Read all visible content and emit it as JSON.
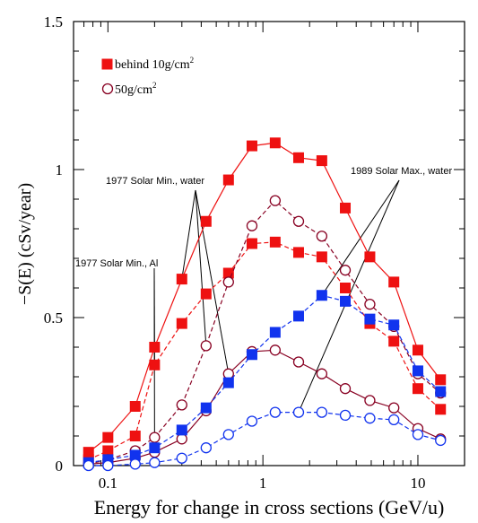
{
  "chart_data": {
    "type": "line",
    "xscale": "log",
    "xlim": [
      0.06,
      20
    ],
    "ylim": [
      0,
      1.5
    ],
    "xlabel": "Energy for change in cross sections (GeV/u)",
    "ylabel": "−S(E) (cSv/year)",
    "xticks": [
      {
        "value": 0.1,
        "label": "0.1"
      },
      {
        "value": 1,
        "label": "1"
      },
      {
        "value": 10,
        "label": "10"
      }
    ],
    "yticks": [
      {
        "value": 0,
        "label": "0"
      },
      {
        "value": 0.5,
        "label": "0.5"
      },
      {
        "value": 1,
        "label": "1"
      },
      {
        "value": 1.5,
        "label": "1.5"
      }
    ],
    "grid": false,
    "legend": {
      "position": "top-left",
      "entries": [
        {
          "marker": "filled-square",
          "text": "behind 10g/cm",
          "sup": "2"
        },
        {
          "marker": "open-circle",
          "text": "50g/cm",
          "sup": "2"
        }
      ]
    },
    "annotations": [
      {
        "text": "1977 Solar Min., water"
      },
      {
        "text": "1989 Solar Max., water"
      },
      {
        "text": "1977 Solar Min., Al"
      }
    ],
    "series": [
      {
        "marker": "square",
        "color": "#ee1111",
        "dash": "solid",
        "x": [
          0.075,
          0.1,
          0.15,
          0.2,
          0.3,
          0.43,
          0.6,
          0.85,
          1.2,
          1.7,
          2.4,
          3.4,
          4.9,
          7,
          10,
          14
        ],
        "y": [
          0.045,
          0.095,
          0.2,
          0.4,
          0.63,
          0.825,
          0.965,
          1.08,
          1.09,
          1.04,
          1.03,
          0.87,
          0.705,
          0.62,
          0.39,
          0.29
        ]
      },
      {
        "marker": "square",
        "color": "#ee1111",
        "dash": "dashed",
        "x": [
          0.075,
          0.1,
          0.15,
          0.2,
          0.3,
          0.43,
          0.6,
          0.85,
          1.2,
          1.7,
          2.4,
          3.4,
          4.9,
          7,
          10,
          14
        ],
        "y": [
          0.02,
          0.05,
          0.1,
          0.34,
          0.48,
          0.58,
          0.65,
          0.75,
          0.755,
          0.72,
          0.705,
          0.6,
          0.48,
          0.42,
          0.26,
          0.19
        ]
      },
      {
        "marker": "circle",
        "color": "#880022",
        "dash": "dashed",
        "x": [
          0.075,
          0.1,
          0.15,
          0.2,
          0.3,
          0.43,
          0.6,
          0.85,
          1.2,
          1.7,
          2.4,
          3.4,
          4.9,
          7,
          10,
          14
        ],
        "y": [
          0.005,
          0.02,
          0.05,
          0.095,
          0.205,
          0.405,
          0.62,
          0.81,
          0.895,
          0.825,
          0.775,
          0.66,
          0.545,
          0.47,
          0.31,
          0.245
        ]
      },
      {
        "marker": "circle",
        "color": "#880022",
        "dash": "solid",
        "x": [
          0.075,
          0.1,
          0.15,
          0.2,
          0.3,
          0.43,
          0.6,
          0.85,
          1.2,
          1.7,
          2.4,
          3.4,
          4.9,
          7,
          10,
          14
        ],
        "y": [
          0.005,
          0.01,
          0.025,
          0.045,
          0.09,
          0.185,
          0.31,
          0.385,
          0.39,
          0.35,
          0.31,
          0.26,
          0.22,
          0.195,
          0.125,
          0.09
        ]
      },
      {
        "marker": "square",
        "color": "#1133ee",
        "dash": "dashed",
        "x": [
          0.075,
          0.1,
          0.15,
          0.2,
          0.3,
          0.43,
          0.6,
          0.85,
          1.2,
          1.7,
          2.4,
          3.4,
          4.9,
          7,
          10,
          14
        ],
        "y": [
          0.01,
          0.02,
          0.035,
          0.06,
          0.12,
          0.195,
          0.28,
          0.375,
          0.45,
          0.505,
          0.575,
          0.555,
          0.495,
          0.475,
          0.32,
          0.25
        ]
      },
      {
        "marker": "circle",
        "color": "#1133ee",
        "dash": "dashed",
        "x": [
          0.075,
          0.1,
          0.15,
          0.2,
          0.3,
          0.43,
          0.6,
          0.85,
          1.2,
          1.7,
          2.4,
          3.4,
          4.9,
          7,
          10,
          14
        ],
        "y": [
          0.0,
          0.0,
          0.005,
          0.01,
          0.025,
          0.06,
          0.105,
          0.15,
          0.18,
          0.18,
          0.18,
          0.17,
          0.16,
          0.155,
          0.105,
          0.085
        ]
      }
    ]
  }
}
